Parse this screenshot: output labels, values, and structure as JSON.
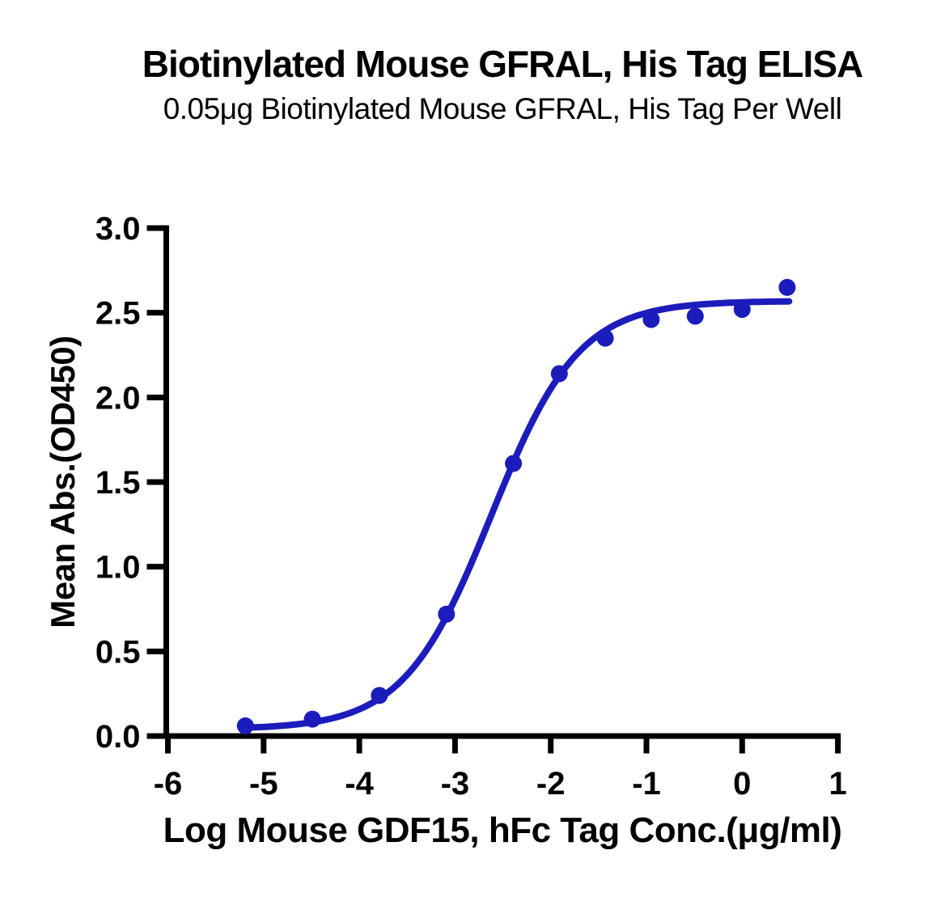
{
  "header": {
    "title": "Biotinylated Mouse GFRAL, His Tag ELISA",
    "subtitle": "0.05μg Biotinylated Mouse GFRAL, His Tag Per Well"
  },
  "colors": {
    "series_blue": "#1c1cbc",
    "axis_black": "#000000",
    "background": "#ffffff"
  },
  "chart_data": {
    "type": "scatter",
    "title": "Biotinylated Mouse GFRAL, His Tag ELISA",
    "subtitle": "0.05μg Biotinylated Mouse GFRAL, His Tag Per Well",
    "xlabel": "Log Mouse GDF15, hFc Tag Conc.(μg/ml)",
    "ylabel": "Mean Abs.(OD450)",
    "xlim": [
      -6,
      1
    ],
    "ylim": [
      0.0,
      3.0
    ],
    "x_ticks": [
      -6,
      -5,
      -4,
      -3,
      -2,
      -1,
      0,
      1
    ],
    "x_tick_labels": [
      "-6",
      "-5",
      "-4",
      "-3",
      "-2",
      "-1",
      "0",
      "1"
    ],
    "y_ticks": [
      0.0,
      0.5,
      1.0,
      1.5,
      2.0,
      2.5,
      3.0
    ],
    "y_tick_labels": [
      "0.0",
      "0.5",
      "1.0",
      "1.5",
      "2.0",
      "2.5",
      "3.0"
    ],
    "grid": false,
    "legend": false,
    "marker": "circle",
    "points": {
      "x": [
        -5.19,
        -4.49,
        -3.79,
        -3.09,
        -2.39,
        -1.91,
        -1.43,
        -0.95,
        -0.49,
        0.0,
        0.47
      ],
      "y": [
        0.06,
        0.1,
        0.24,
        0.72,
        1.61,
        2.14,
        2.35,
        2.46,
        2.48,
        2.52,
        2.65
      ]
    },
    "curve_fit": {
      "model": "4PL",
      "bottom": 0.04,
      "top": 2.57,
      "log_ec50": -2.62,
      "hill_slope": 0.95,
      "x_start": -5.19,
      "x_end": 0.49
    }
  }
}
